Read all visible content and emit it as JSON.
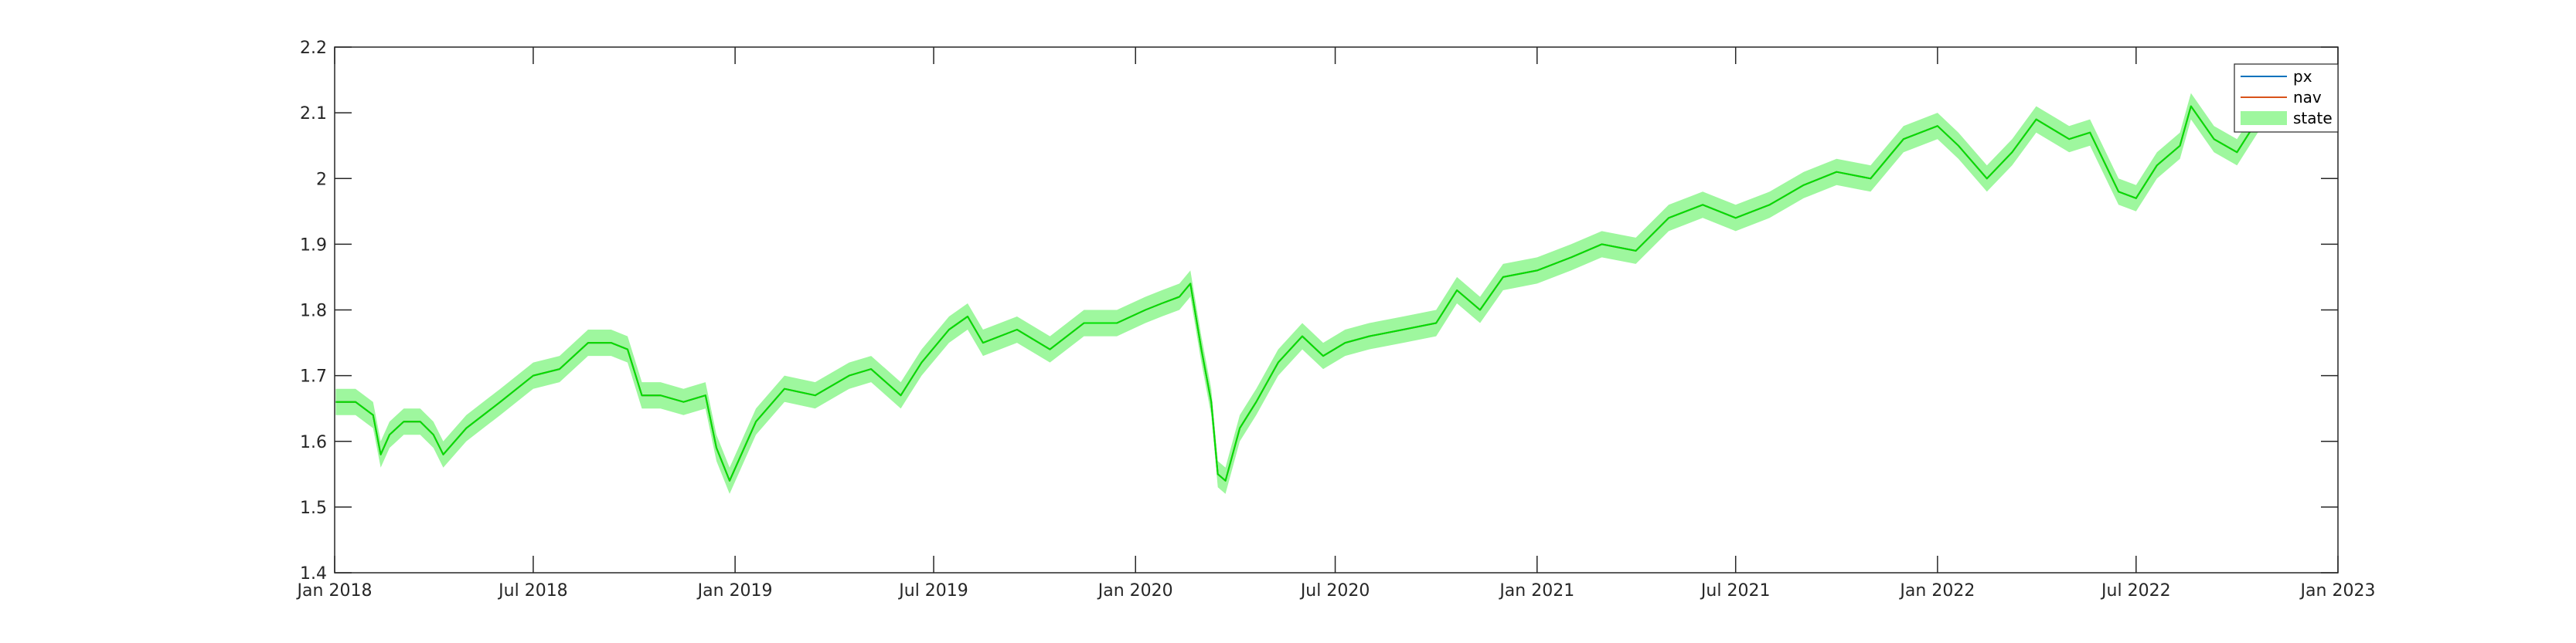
{
  "chart_data": {
    "type": "line",
    "title": "",
    "xlabel": "",
    "ylabel": "",
    "xlim": [
      "2018-01-01",
      "2023-01-01"
    ],
    "ylim": [
      1.4,
      2.2
    ],
    "grid": false,
    "legend_placement": "top-right",
    "x_tick_labels": [
      "Jan 2018",
      "Jul 2018",
      "Jan 2019",
      "Jul 2019",
      "Jan 2020",
      "Jul 2020",
      "Jan 2021",
      "Jul 2021",
      "Jan 2022",
      "Jul 2022",
      "Jan 2023"
    ],
    "x_ticks": [
      "2018-01-01",
      "2018-07-01",
      "2019-01-01",
      "2019-07-01",
      "2020-01-01",
      "2020-07-01",
      "2021-01-01",
      "2021-07-01",
      "2022-01-01",
      "2022-07-01",
      "2023-01-01"
    ],
    "y_ticks": [
      1.4,
      1.5,
      1.6,
      1.7,
      1.8,
      1.9,
      2.0,
      2.1,
      2.2
    ],
    "y_tick_labels": [
      "1.4",
      "1.5",
      "1.6",
      "1.7",
      "1.8",
      "1.9",
      "2",
      "2.1",
      "2.2"
    ],
    "band_halfwidth": 0.02,
    "series": [
      {
        "name": "px",
        "color": "#0072BD",
        "x": [
          "2018-01-02",
          "2018-01-20",
          "2018-02-05",
          "2018-02-12",
          "2018-02-20",
          "2018-03-05",
          "2018-03-20",
          "2018-04-01",
          "2018-04-10",
          "2018-05-01",
          "2018-06-01",
          "2018-07-01",
          "2018-07-25",
          "2018-08-20",
          "2018-09-10",
          "2018-09-25",
          "2018-10-08",
          "2018-10-25",
          "2018-11-15",
          "2018-12-05",
          "2018-12-15",
          "2018-12-27",
          "2019-01-20",
          "2019-02-15",
          "2019-03-15",
          "2019-04-15",
          "2019-05-05",
          "2019-06-01",
          "2019-06-20",
          "2019-07-15",
          "2019-08-01",
          "2019-08-15",
          "2019-09-15",
          "2019-10-15",
          "2019-11-15",
          "2019-12-15",
          "2020-01-10",
          "2020-01-25",
          "2020-02-10",
          "2020-02-20",
          "2020-03-01",
          "2020-03-10",
          "2020-03-16",
          "2020-03-23",
          "2020-04-05",
          "2020-04-20",
          "2020-05-10",
          "2020-06-01",
          "2020-06-20",
          "2020-07-10",
          "2020-08-01",
          "2020-09-01",
          "2020-10-01",
          "2020-10-20",
          "2020-11-10",
          "2020-12-01",
          "2021-01-01",
          "2021-02-01",
          "2021-03-01",
          "2021-04-01",
          "2021-05-01",
          "2021-06-01",
          "2021-07-01",
          "2021-08-01",
          "2021-09-01",
          "2021-10-01",
          "2021-11-01",
          "2021-12-01",
          "2022-01-01",
          "2022-01-20",
          "2022-02-15",
          "2022-03-10",
          "2022-04-01",
          "2022-05-01",
          "2022-05-20",
          "2022-06-15",
          "2022-07-01",
          "2022-07-20",
          "2022-08-10",
          "2022-08-20",
          "2022-09-10",
          "2022-10-01",
          "2022-10-20"
        ],
        "values": [
          1.66,
          1.66,
          1.64,
          1.58,
          1.61,
          1.63,
          1.63,
          1.61,
          1.58,
          1.62,
          1.66,
          1.7,
          1.71,
          1.75,
          1.75,
          1.74,
          1.67,
          1.67,
          1.66,
          1.67,
          1.59,
          1.54,
          1.63,
          1.68,
          1.67,
          1.7,
          1.71,
          1.67,
          1.72,
          1.77,
          1.79,
          1.75,
          1.77,
          1.74,
          1.78,
          1.78,
          1.8,
          1.81,
          1.82,
          1.84,
          1.74,
          1.66,
          1.55,
          1.54,
          1.62,
          1.66,
          1.72,
          1.76,
          1.73,
          1.75,
          1.76,
          1.77,
          1.78,
          1.83,
          1.8,
          1.85,
          1.86,
          1.88,
          1.9,
          1.89,
          1.94,
          1.96,
          1.94,
          1.96,
          1.99,
          2.01,
          2.0,
          2.06,
          2.08,
          2.05,
          2.0,
          2.04,
          2.09,
          2.06,
          2.07,
          1.98,
          1.97,
          2.02,
          2.05,
          2.11,
          2.06,
          2.04,
          2.09
        ]
      },
      {
        "name": "nav",
        "color": "#D95319",
        "x": [
          "2018-01-02",
          "2018-01-20",
          "2018-02-05",
          "2018-02-12",
          "2018-02-20",
          "2018-03-05",
          "2018-03-20",
          "2018-04-01",
          "2018-04-10",
          "2018-05-01",
          "2018-06-01",
          "2018-07-01",
          "2018-07-25",
          "2018-08-20",
          "2018-09-10",
          "2018-09-25",
          "2018-10-08",
          "2018-10-25",
          "2018-11-15",
          "2018-12-05",
          "2018-12-15",
          "2018-12-27",
          "2019-01-20",
          "2019-02-15",
          "2019-03-15",
          "2019-04-15",
          "2019-05-05",
          "2019-06-01",
          "2019-06-20",
          "2019-07-15",
          "2019-08-01",
          "2019-08-15",
          "2019-09-15",
          "2019-10-15",
          "2019-11-15",
          "2019-12-15",
          "2020-01-10",
          "2020-01-25",
          "2020-02-10",
          "2020-02-20",
          "2020-03-01",
          "2020-03-10",
          "2020-03-16",
          "2020-03-23",
          "2020-04-05",
          "2020-04-20",
          "2020-05-10",
          "2020-06-01",
          "2020-06-20",
          "2020-07-10",
          "2020-08-01",
          "2020-09-01",
          "2020-10-01",
          "2020-10-20",
          "2020-11-10",
          "2020-12-01",
          "2021-01-01",
          "2021-02-01",
          "2021-03-01",
          "2021-04-01",
          "2021-05-01",
          "2021-06-01",
          "2021-07-01",
          "2021-08-01",
          "2021-09-01",
          "2021-10-01",
          "2021-11-01",
          "2021-12-01",
          "2022-01-01",
          "2022-01-20",
          "2022-02-15",
          "2022-03-10",
          "2022-04-01",
          "2022-05-01",
          "2022-05-20",
          "2022-06-15",
          "2022-07-01",
          "2022-07-20",
          "2022-08-10",
          "2022-08-20",
          "2022-09-10",
          "2022-10-01",
          "2022-10-20"
        ],
        "values": [
          1.66,
          1.66,
          1.64,
          1.58,
          1.61,
          1.63,
          1.63,
          1.61,
          1.58,
          1.62,
          1.66,
          1.7,
          1.71,
          1.75,
          1.75,
          1.74,
          1.67,
          1.67,
          1.66,
          1.67,
          1.59,
          1.54,
          1.63,
          1.68,
          1.67,
          1.7,
          1.71,
          1.67,
          1.72,
          1.77,
          1.79,
          1.75,
          1.77,
          1.74,
          1.78,
          1.78,
          1.8,
          1.81,
          1.82,
          1.84,
          1.74,
          1.66,
          1.55,
          1.54,
          1.62,
          1.66,
          1.72,
          1.76,
          1.73,
          1.75,
          1.76,
          1.77,
          1.78,
          1.83,
          1.8,
          1.85,
          1.86,
          1.88,
          1.9,
          1.89,
          1.94,
          1.96,
          1.94,
          1.96,
          1.99,
          2.01,
          2.0,
          2.06,
          2.08,
          2.05,
          2.0,
          2.04,
          2.09,
          2.06,
          2.07,
          1.98,
          1.97,
          2.02,
          2.05,
          2.11,
          2.06,
          2.04,
          2.09
        ]
      },
      {
        "name": "state",
        "color": "#00E000",
        "band_color": "#9EF79E",
        "x": [
          "2018-01-02",
          "2018-01-20",
          "2018-02-05",
          "2018-02-12",
          "2018-02-20",
          "2018-03-05",
          "2018-03-20",
          "2018-04-01",
          "2018-04-10",
          "2018-05-01",
          "2018-06-01",
          "2018-07-01",
          "2018-07-25",
          "2018-08-20",
          "2018-09-10",
          "2018-09-25",
          "2018-10-08",
          "2018-10-25",
          "2018-11-15",
          "2018-12-05",
          "2018-12-15",
          "2018-12-27",
          "2019-01-20",
          "2019-02-15",
          "2019-03-15",
          "2019-04-15",
          "2019-05-05",
          "2019-06-01",
          "2019-06-20",
          "2019-07-15",
          "2019-08-01",
          "2019-08-15",
          "2019-09-15",
          "2019-10-15",
          "2019-11-15",
          "2019-12-15",
          "2020-01-10",
          "2020-01-25",
          "2020-02-10",
          "2020-02-20",
          "2020-03-01",
          "2020-03-10",
          "2020-03-16",
          "2020-03-23",
          "2020-04-05",
          "2020-04-20",
          "2020-05-10",
          "2020-06-01",
          "2020-06-20",
          "2020-07-10",
          "2020-08-01",
          "2020-09-01",
          "2020-10-01",
          "2020-10-20",
          "2020-11-10",
          "2020-12-01",
          "2021-01-01",
          "2021-02-01",
          "2021-03-01",
          "2021-04-01",
          "2021-05-01",
          "2021-06-01",
          "2021-07-01",
          "2021-08-01",
          "2021-09-01",
          "2021-10-01",
          "2021-11-01",
          "2021-12-01",
          "2022-01-01",
          "2022-01-20",
          "2022-02-15",
          "2022-03-10",
          "2022-04-01",
          "2022-05-01",
          "2022-05-20",
          "2022-06-15",
          "2022-07-01",
          "2022-07-20",
          "2022-08-10",
          "2022-08-20",
          "2022-09-10",
          "2022-10-01",
          "2022-10-20"
        ],
        "values": [
          1.66,
          1.66,
          1.64,
          1.58,
          1.61,
          1.63,
          1.63,
          1.61,
          1.58,
          1.62,
          1.66,
          1.7,
          1.71,
          1.75,
          1.75,
          1.74,
          1.67,
          1.67,
          1.66,
          1.67,
          1.59,
          1.54,
          1.63,
          1.68,
          1.67,
          1.7,
          1.71,
          1.67,
          1.72,
          1.77,
          1.79,
          1.75,
          1.77,
          1.74,
          1.78,
          1.78,
          1.8,
          1.81,
          1.82,
          1.84,
          1.74,
          1.66,
          1.55,
          1.54,
          1.62,
          1.66,
          1.72,
          1.76,
          1.73,
          1.75,
          1.76,
          1.77,
          1.78,
          1.83,
          1.8,
          1.85,
          1.86,
          1.88,
          1.9,
          1.89,
          1.94,
          1.96,
          1.94,
          1.96,
          1.99,
          2.01,
          2.0,
          2.06,
          2.08,
          2.05,
          2.0,
          2.04,
          2.09,
          2.06,
          2.07,
          1.98,
          1.97,
          2.02,
          2.05,
          2.11,
          2.06,
          2.04,
          2.09
        ]
      }
    ]
  }
}
